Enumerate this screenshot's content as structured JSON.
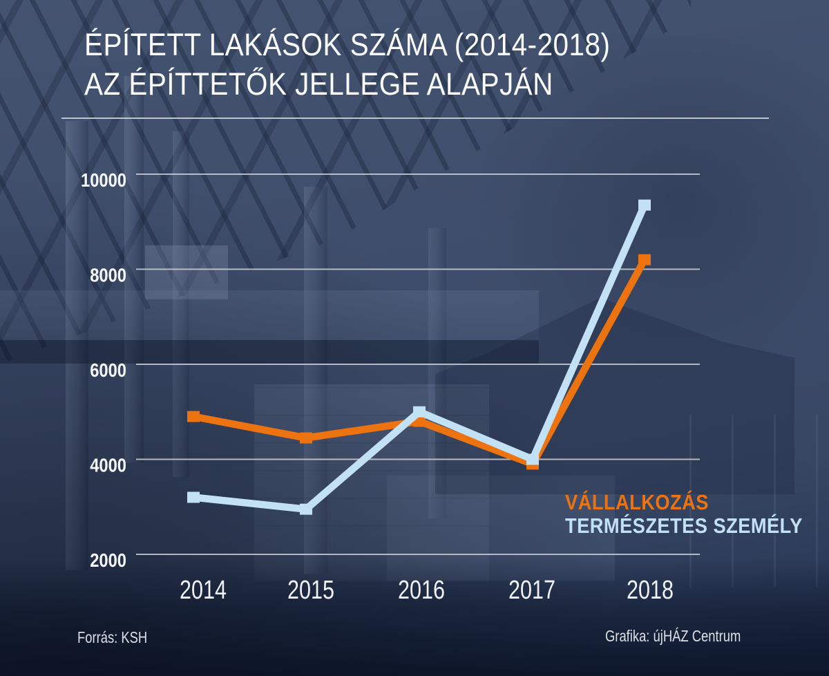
{
  "title": {
    "line1": "ÉPÍTETT LAKÁSOK SZÁMA (2014-2018)",
    "line2": "AZ ÉPÍTTETŐK JELLEGE ALAPJÁN"
  },
  "footer": {
    "source": "Forrás: KSH",
    "credit": "Grafika: újHÁZ Centrum"
  },
  "colors": {
    "background": "#3D4C6A",
    "series_orange": "#EC7310",
    "series_blue": "#C2E1F4",
    "gridline": "#CCCFD6",
    "title_text": "#FBFCFD",
    "axis_text": "#F2F4F7"
  },
  "chart_data": {
    "type": "line",
    "title": "ÉPÍTETT LAKÁSOK SZÁMA (2014-2018) AZ ÉPÍTTETŐK JELLEGE ALAPJÁN",
    "categories": [
      "2014",
      "2015",
      "2016",
      "2017",
      "2018"
    ],
    "series": [
      {
        "name": "VÁLLALKOZÁS",
        "color": "#EC7310",
        "values": [
          4900,
          4450,
          4800,
          3900,
          8200
        ]
      },
      {
        "name": "TERMÉSZETES SZEMÉLY",
        "color": "#C2E1F4",
        "values": [
          3200,
          2950,
          5000,
          4000,
          9350
        ]
      }
    ],
    "y_ticks": [
      10000,
      8000,
      6000,
      4000,
      2000
    ],
    "ylim": [
      2000,
      10000
    ],
    "grid": "horizontal",
    "legend_position": "inside-bottom-right",
    "marker": "square"
  }
}
